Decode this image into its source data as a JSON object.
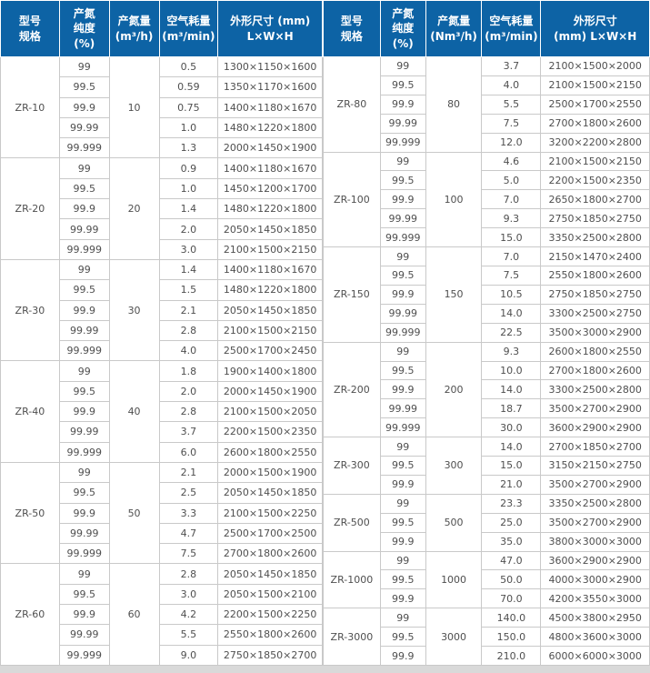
{
  "theme": {
    "header_bg": "#0d63a5",
    "header_text": "#ffffff",
    "body_text": "#4f4f4f",
    "border": "#c9c9c9",
    "page_bg": "#d9d9d9"
  },
  "tables": [
    {
      "id": "left",
      "headers": [
        [
          "型号",
          "规格"
        ],
        [
          "产氮",
          "纯度",
          "(%)"
        ],
        [
          "产氮量",
          "(m³/h)"
        ],
        [
          "空气耗量",
          "(m³/min)"
        ],
        [
          "外形尺寸 (mm)",
          "L×W×H"
        ]
      ],
      "groups": [
        {
          "model": "ZR-10",
          "output": "10",
          "rows": [
            {
              "purity": "99",
              "air": "0.5",
              "dims": "1300×1150×1600"
            },
            {
              "purity": "99.5",
              "air": "0.59",
              "dims": "1350×1170×1600"
            },
            {
              "purity": "99.9",
              "air": "0.75",
              "dims": "1400×1180×1670"
            },
            {
              "purity": "99.99",
              "air": "1.0",
              "dims": "1480×1220×1800"
            },
            {
              "purity": "99.999",
              "air": "1.3",
              "dims": "2000×1450×1900"
            }
          ]
        },
        {
          "model": "ZR-20",
          "output": "20",
          "rows": [
            {
              "purity": "99",
              "air": "0.9",
              "dims": "1400×1180×1670"
            },
            {
              "purity": "99.5",
              "air": "1.0",
              "dims": "1450×1200×1700"
            },
            {
              "purity": "99.9",
              "air": "1.4",
              "dims": "1480×1220×1800"
            },
            {
              "purity": "99.99",
              "air": "2.0",
              "dims": "2050×1450×1850"
            },
            {
              "purity": "99.999",
              "air": "3.0",
              "dims": "2100×1500×2150"
            }
          ]
        },
        {
          "model": "ZR-30",
          "output": "30",
          "rows": [
            {
              "purity": "99",
              "air": "1.4",
              "dims": "1400×1180×1670"
            },
            {
              "purity": "99.5",
              "air": "1.5",
              "dims": "1480×1220×1800"
            },
            {
              "purity": "99.9",
              "air": "2.1",
              "dims": "2050×1450×1850"
            },
            {
              "purity": "99.99",
              "air": "2.8",
              "dims": "2100×1500×2150"
            },
            {
              "purity": "99.999",
              "air": "4.0",
              "dims": "2500×1700×2450"
            }
          ]
        },
        {
          "model": "ZR-40",
          "output": "40",
          "rows": [
            {
              "purity": "99",
              "air": "1.8",
              "dims": "1900×1400×1800"
            },
            {
              "purity": "99.5",
              "air": "2.0",
              "dims": "2000×1450×1900"
            },
            {
              "purity": "99.9",
              "air": "2.8",
              "dims": "2100×1500×2050"
            },
            {
              "purity": "99.99",
              "air": "3.7",
              "dims": "2200×1500×2350"
            },
            {
              "purity": "99.999",
              "air": "6.0",
              "dims": "2600×1800×2550"
            }
          ]
        },
        {
          "model": "ZR-50",
          "output": "50",
          "rows": [
            {
              "purity": "99",
              "air": "2.1",
              "dims": "2000×1500×1900"
            },
            {
              "purity": "99.5",
              "air": "2.5",
              "dims": "2050×1450×1850"
            },
            {
              "purity": "99.9",
              "air": "3.3",
              "dims": "2100×1500×2250"
            },
            {
              "purity": "99.99",
              "air": "4.7",
              "dims": "2500×1700×2500"
            },
            {
              "purity": "99.999",
              "air": "7.5",
              "dims": "2700×1800×2600"
            }
          ]
        },
        {
          "model": "ZR-60",
          "output": "60",
          "rows": [
            {
              "purity": "99",
              "air": "2.8",
              "dims": "2050×1450×1850"
            },
            {
              "purity": "99.5",
              "air": "3.0",
              "dims": "2050×1500×2100"
            },
            {
              "purity": "99.9",
              "air": "4.2",
              "dims": "2200×1500×2250"
            },
            {
              "purity": "99.99",
              "air": "5.5",
              "dims": "2550×1800×2600"
            },
            {
              "purity": "99.999",
              "air": "9.0",
              "dims": "2750×1850×2700"
            }
          ]
        }
      ]
    },
    {
      "id": "right",
      "headers": [
        [
          "型号",
          "规格"
        ],
        [
          "产氮",
          "纯度",
          "(%)"
        ],
        [
          "产氮量",
          "(Nm³/h)"
        ],
        [
          "空气耗量",
          "(m³/min)"
        ],
        [
          "外形尺寸",
          "(mm)  L×W×H"
        ]
      ],
      "groups": [
        {
          "model": "ZR-80",
          "output": "80",
          "rows": [
            {
              "purity": "99",
              "air": "3.7",
              "dims": "2100×1500×2000"
            },
            {
              "purity": "99.5",
              "air": "4.0",
              "dims": "2100×1500×2150"
            },
            {
              "purity": "99.9",
              "air": "5.5",
              "dims": "2500×1700×2550"
            },
            {
              "purity": "99.99",
              "air": "7.5",
              "dims": "2700×1800×2600"
            },
            {
              "purity": "99.999",
              "air": "12.0",
              "dims": "3200×2200×2800"
            }
          ]
        },
        {
          "model": "ZR-100",
          "output": "100",
          "rows": [
            {
              "purity": "99",
              "air": "4.6",
              "dims": "2100×1500×2150"
            },
            {
              "purity": "99.5",
              "air": "5.0",
              "dims": "2200×1500×2350"
            },
            {
              "purity": "99.9",
              "air": "7.0",
              "dims": "2650×1800×2700"
            },
            {
              "purity": "99.99",
              "air": "9.3",
              "dims": "2750×1850×2750"
            },
            {
              "purity": "99.999",
              "air": "15.0",
              "dims": "3350×2500×2800"
            }
          ]
        },
        {
          "model": "ZR-150",
          "output": "150",
          "rows": [
            {
              "purity": "99",
              "air": "7.0",
              "dims": "2150×1470×2400"
            },
            {
              "purity": "99.5",
              "air": "7.5",
              "dims": "2550×1800×2600"
            },
            {
              "purity": "99.9",
              "air": "10.5",
              "dims": "2750×1850×2750"
            },
            {
              "purity": "99.99",
              "air": "14.0",
              "dims": "3300×2500×2750"
            },
            {
              "purity": "99.999",
              "air": "22.5",
              "dims": "3500×3000×2900"
            }
          ]
        },
        {
          "model": "ZR-200",
          "output": "200",
          "rows": [
            {
              "purity": "99",
              "air": "9.3",
              "dims": "2600×1800×2550"
            },
            {
              "purity": "99.5",
              "air": "10.0",
              "dims": "2700×1800×2600"
            },
            {
              "purity": "99.9",
              "air": "14.0",
              "dims": "3300×2500×2800"
            },
            {
              "purity": "99.99",
              "air": "18.7",
              "dims": "3500×2700×2900"
            },
            {
              "purity": "99.999",
              "air": "30.0",
              "dims": "3600×2900×2900"
            }
          ]
        },
        {
          "model": "ZR-300",
          "output": "300",
          "rows": [
            {
              "purity": "99",
              "air": "14.0",
              "dims": "2700×1850×2700"
            },
            {
              "purity": "99.5",
              "air": "15.0",
              "dims": "3150×2150×2750"
            },
            {
              "purity": "99.9",
              "air": "21.0",
              "dims": "3500×2700×2900"
            }
          ]
        },
        {
          "model": "ZR-500",
          "output": "500",
          "rows": [
            {
              "purity": "99",
              "air": "23.3",
              "dims": "3350×2500×2800"
            },
            {
              "purity": "99.5",
              "air": "25.0",
              "dims": "3500×2700×2900"
            },
            {
              "purity": "99.9",
              "air": "35.0",
              "dims": "3800×3000×3000"
            }
          ]
        },
        {
          "model": "ZR-1000",
          "output": "1000",
          "rows": [
            {
              "purity": "99",
              "air": "47.0",
              "dims": "3600×2900×2900"
            },
            {
              "purity": "99.5",
              "air": "50.0",
              "dims": "4000×3000×2900"
            },
            {
              "purity": "99.9",
              "air": "70.0",
              "dims": "4200×3550×3000"
            }
          ]
        },
        {
          "model": "ZR-3000",
          "output": "3000",
          "rows": [
            {
              "purity": "99",
              "air": "140.0",
              "dims": "4500×3800×2950"
            },
            {
              "purity": "99.5",
              "air": "150.0",
              "dims": "4800×3600×3000"
            },
            {
              "purity": "99.9",
              "air": "210.0",
              "dims": "6000×6000×3000"
            }
          ]
        }
      ]
    }
  ]
}
